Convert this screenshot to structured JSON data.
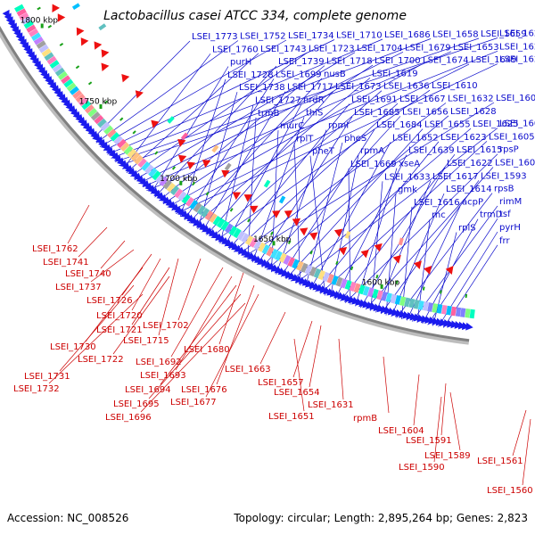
{
  "title": "Lactobacillus casei ATCC 334, complete genome",
  "accession": "Accession: NC_008526",
  "topology": "Topology: circular; Length: 2,895,264 bp; Genes: 2,823",
  "colors": {
    "forward_label": "#0a0acc",
    "reverse_label": "#cc0000",
    "forward_arrow": "#1a1aee",
    "reverse_arrow": "#ee1111",
    "backbone": "#808080"
  },
  "kbp_marks": [
    {
      "label": "1800 kbp",
      "frac": 0.04
    },
    {
      "label": "1750 kbp",
      "frac": 0.22
    },
    {
      "label": "1700 kbp",
      "frac": 0.42
    },
    {
      "label": "1650 kbp",
      "frac": 0.62
    },
    {
      "label": "1600 kbp",
      "frac": 0.83
    }
  ],
  "forward_labels": [
    "LSEI_1773",
    "LSEI_1752",
    "LSEI_1734",
    "LSEI_1710",
    "LSEI_1686",
    "LSEI_1658",
    "LSEI_1659",
    "LSEI_1624",
    "LSEI_1760",
    "LSEI_1743",
    "LSEI_1723",
    "LSEI_1704",
    "LSEI_1679",
    "LSEI_1653",
    "LSEI_1621",
    "purH",
    "LSEI_1739",
    "LSEI_1718",
    "LSEI_1700",
    "LSEI_1674",
    "LSEI_1649",
    "LSEI_1620",
    "LSEI_1728",
    "LSEI_1699",
    "nusB",
    "LSEI_1619",
    "LSEI_1738",
    "LSEI_1717",
    "LSEI_1673",
    "LSEI_1636",
    "LSEI_1610",
    "LSEI_1727",
    "nrdR",
    "LSEI_1691",
    "LSEI_1667",
    "LSEI_1632",
    "LSEI_1608",
    "trmB",
    "thiS",
    "LSEI_1685",
    "LSEI_1656",
    "LSEI_1628",
    "murC",
    "rpmI",
    "LSEI_1684",
    "LSEI_1655",
    "LSEI_1625",
    "LSEI_1606",
    "rplT",
    "pheS",
    "LSEI_1652",
    "LSEI_1623",
    "LSEI_1605",
    "pheT",
    "rpmA",
    "LSEI_1639",
    "LSEI_1615",
    "rpsP",
    "LSEI_1669",
    "xseA",
    "LSEI_1622",
    "LSEI_1600",
    "LSEI_1633",
    "LSEI_1617",
    "LSEI_1593",
    "gmk",
    "LSEI_1614",
    "rpsB",
    "LSEI_1616",
    "acpP",
    "rimM",
    "rnc",
    "trmD",
    "tsf",
    "rplS",
    "pyrH",
    "frr"
  ],
  "reverse_labels": [
    "LSEI_1762",
    "LSEI_1741",
    "LSEI_1740",
    "LSEI_1737",
    "LSEI_1726",
    "LSEI_1720",
    "LSEI_1721",
    "LSEI_1715",
    "LSEI_1702",
    "LSEI_1730",
    "LSEI_1722",
    "LSEI_1731",
    "LSEI_1732",
    "LSEI_1692",
    "LSEI_1693",
    "LSEI_1694",
    "LSEI_1695",
    "LSEI_1696",
    "LSEI_1680",
    "LSEI_1676",
    "LSEI_1677",
    "LSEI_1663",
    "LSEI_1657",
    "LSEI_1654",
    "LSEI_1651",
    "LSEI_1631",
    "rpmB",
    "LSEI_1604",
    "LSEI_1591",
    "LSEI_1589",
    "LSEI_1590",
    "LSEI_1561",
    "LSEI_1560"
  ]
}
